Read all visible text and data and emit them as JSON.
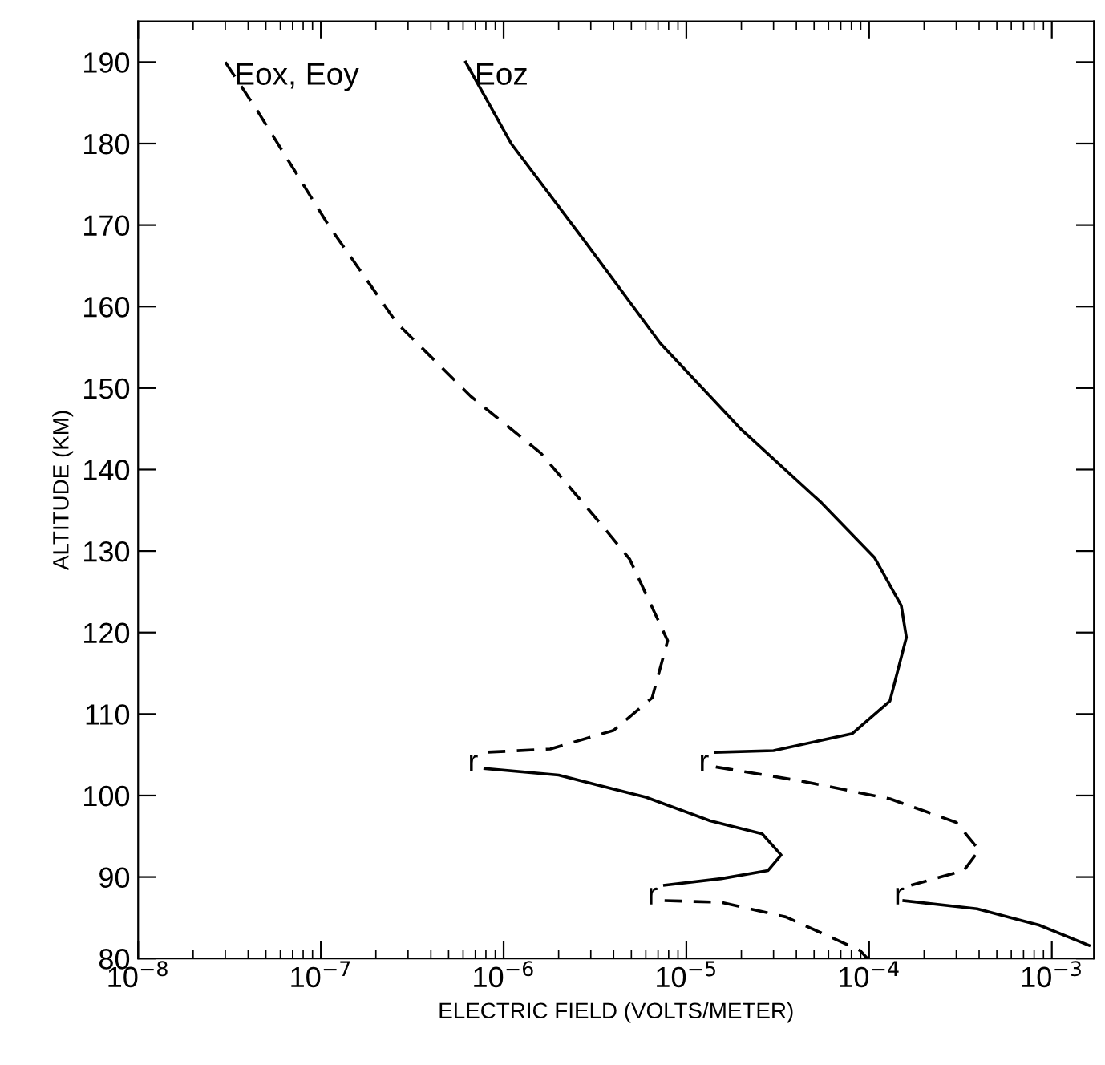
{
  "chart_data": {
    "type": "line",
    "xlabel": "ELECTRIC FIELD (VOLTS/METER)",
    "ylabel": "ALTITUDE (KM)",
    "log": "x",
    "xlim": [
      1e-08,
      0.0017
    ],
    "ylim": [
      80,
      195
    ],
    "xticks": [
      {
        "value": 1e-08,
        "label": "10$^{−8}$"
      },
      {
        "value": 1e-07,
        "label": "10$^{−7}$"
      },
      {
        "value": 1e-06,
        "label": "10$^{−6}$"
      },
      {
        "value": 1e-05,
        "label": "10$^{−5}$"
      },
      {
        "value": 0.0001,
        "label": "10$^{−4}$"
      },
      {
        "value": 0.001,
        "label": "10$^{−3}$"
      }
    ],
    "yticks": [
      80,
      90,
      100,
      110,
      120,
      130,
      140,
      150,
      160,
      170,
      180,
      190
    ],
    "grid": false,
    "marker": "none",
    "series": [
      {
        "color": "#000000",
        "line_style": "dashed",
        "x": [
          3e-08,
          4.5e-08,
          1.1e-07,
          2.6e-07,
          6.6e-07,
          1.6e-06,
          3.5e-06,
          4.9e-06,
          7.9e-06,
          6.5e-06,
          4e-06,
          1.8e-06,
          7.9e-07
        ],
        "values": [
          190,
          184,
          170,
          158,
          149,
          142,
          133,
          129,
          119,
          112,
          108,
          105.7,
          105.3
        ]
      },
      {
        "color": "#000000",
        "line_style": "solid",
        "x": [
          7.9e-07,
          2e-06,
          6e-06,
          1.35e-05,
          2.6e-05,
          3.3e-05,
          2.8e-05,
          1.55e-05,
          7.6e-06
        ],
        "values": [
          103.3,
          102.5,
          99.8,
          96.9,
          95.3,
          92.7,
          90.8,
          89.8,
          89.0
        ]
      },
      {
        "color": "#000000",
        "line_style": "dashed",
        "x": [
          7.6e-06,
          1.55e-05,
          3.5e-05,
          8.9e-05,
          9.8e-05
        ],
        "values": [
          87.1,
          86.9,
          85.1,
          81.0,
          80
        ]
      },
      {
        "color": "#000000",
        "line_style": "solid",
        "x": [
          6.2e-07,
          1.1e-06,
          2.7e-06,
          7.2e-06,
          2e-05,
          5.5e-05,
          0.000107,
          0.00015,
          0.00016,
          0.00013,
          8.1e-05,
          3e-05,
          1.45e-05
        ],
        "values": [
          190,
          180,
          168.4,
          155.5,
          144.9,
          135.9,
          129.2,
          123.3,
          119.4,
          111.6,
          107.6,
          105.5,
          105.3
        ]
      },
      {
        "color": "#000000",
        "line_style": "dashed",
        "x": [
          1.45e-05,
          4.2e-05,
          0.00013,
          0.0003,
          0.0004,
          0.00033,
          0.00017
        ],
        "values": [
          103.5,
          101.8,
          99.6,
          96.7,
          93.3,
          90.8,
          89.0
        ]
      },
      {
        "color": "#000000",
        "line_style": "solid",
        "x": [
          0.000155,
          0.00039,
          0.00085,
          0.0016
        ],
        "values": [
          87.1,
          86.1,
          84.1,
          81.6
        ]
      }
    ],
    "annotations": [
      {
        "text": "Eox, Eoy",
        "x": 3e-08,
        "y": 190
      },
      {
        "text": "Eoz",
        "x": 6.2e-07,
        "y": 190
      },
      {
        "text": "r",
        "x": 7.9e-07,
        "y": 105.3
      },
      {
        "text": "r",
        "x": 7.6e-06,
        "y": 89.0
      },
      {
        "text": "r",
        "x": 1.45e-05,
        "y": 105.3
      },
      {
        "text": "r",
        "x": 0.00017,
        "y": 89.0
      }
    ]
  }
}
